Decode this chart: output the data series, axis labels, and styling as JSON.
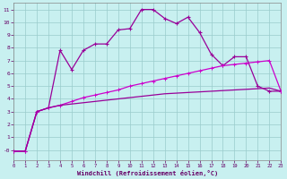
{
  "x_values": [
    0,
    1,
    2,
    3,
    4,
    5,
    6,
    7,
    8,
    9,
    10,
    11,
    12,
    13,
    14,
    15,
    16,
    17,
    18,
    19,
    20,
    21,
    22,
    23
  ],
  "line1": [
    -0.1,
    -0.1,
    3.0,
    3.3,
    7.8,
    6.3,
    7.8,
    8.3,
    8.3,
    9.4,
    9.5,
    11.0,
    11.0,
    10.3,
    9.9,
    10.4,
    9.2,
    7.5,
    6.6,
    7.3,
    7.3,
    5.0,
    4.6,
    4.6
  ],
  "line2": [
    -0.1,
    -0.1,
    3.0,
    3.3,
    3.5,
    3.8,
    4.1,
    4.3,
    4.5,
    4.7,
    5.0,
    5.2,
    5.4,
    5.6,
    5.8,
    6.0,
    6.2,
    6.4,
    6.6,
    6.7,
    6.8,
    6.9,
    7.0,
    4.6
  ],
  "line3": [
    -0.1,
    -0.1,
    3.0,
    3.3,
    3.5,
    3.6,
    3.7,
    3.8,
    3.9,
    4.0,
    4.1,
    4.2,
    4.3,
    4.4,
    4.45,
    4.5,
    4.55,
    4.6,
    4.65,
    4.7,
    4.75,
    4.8,
    4.85,
    4.6
  ],
  "line1_color": "#990099",
  "line2_color": "#cc00cc",
  "line3_color": "#990099",
  "bg_color": "#c8f0f0",
  "grid_color": "#99cccc",
  "border_color": "#888888",
  "tick_color": "#660066",
  "xlabel": "Windchill (Refroidissement éolien,°C)",
  "xlim": [
    0,
    23
  ],
  "ylim": [
    -0.8,
    11.5
  ],
  "ytick_labels": [
    "-0",
    "1",
    "2",
    "3",
    "4",
    "5",
    "6",
    "7",
    "8",
    "9",
    "10",
    "11"
  ],
  "ytick_vals": [
    0,
    1,
    2,
    3,
    4,
    5,
    6,
    7,
    8,
    9,
    10,
    11
  ],
  "xtick_vals": [
    0,
    1,
    2,
    3,
    4,
    5,
    6,
    7,
    8,
    9,
    10,
    11,
    12,
    13,
    14,
    15,
    16,
    17,
    18,
    19,
    20,
    21,
    22,
    23
  ]
}
